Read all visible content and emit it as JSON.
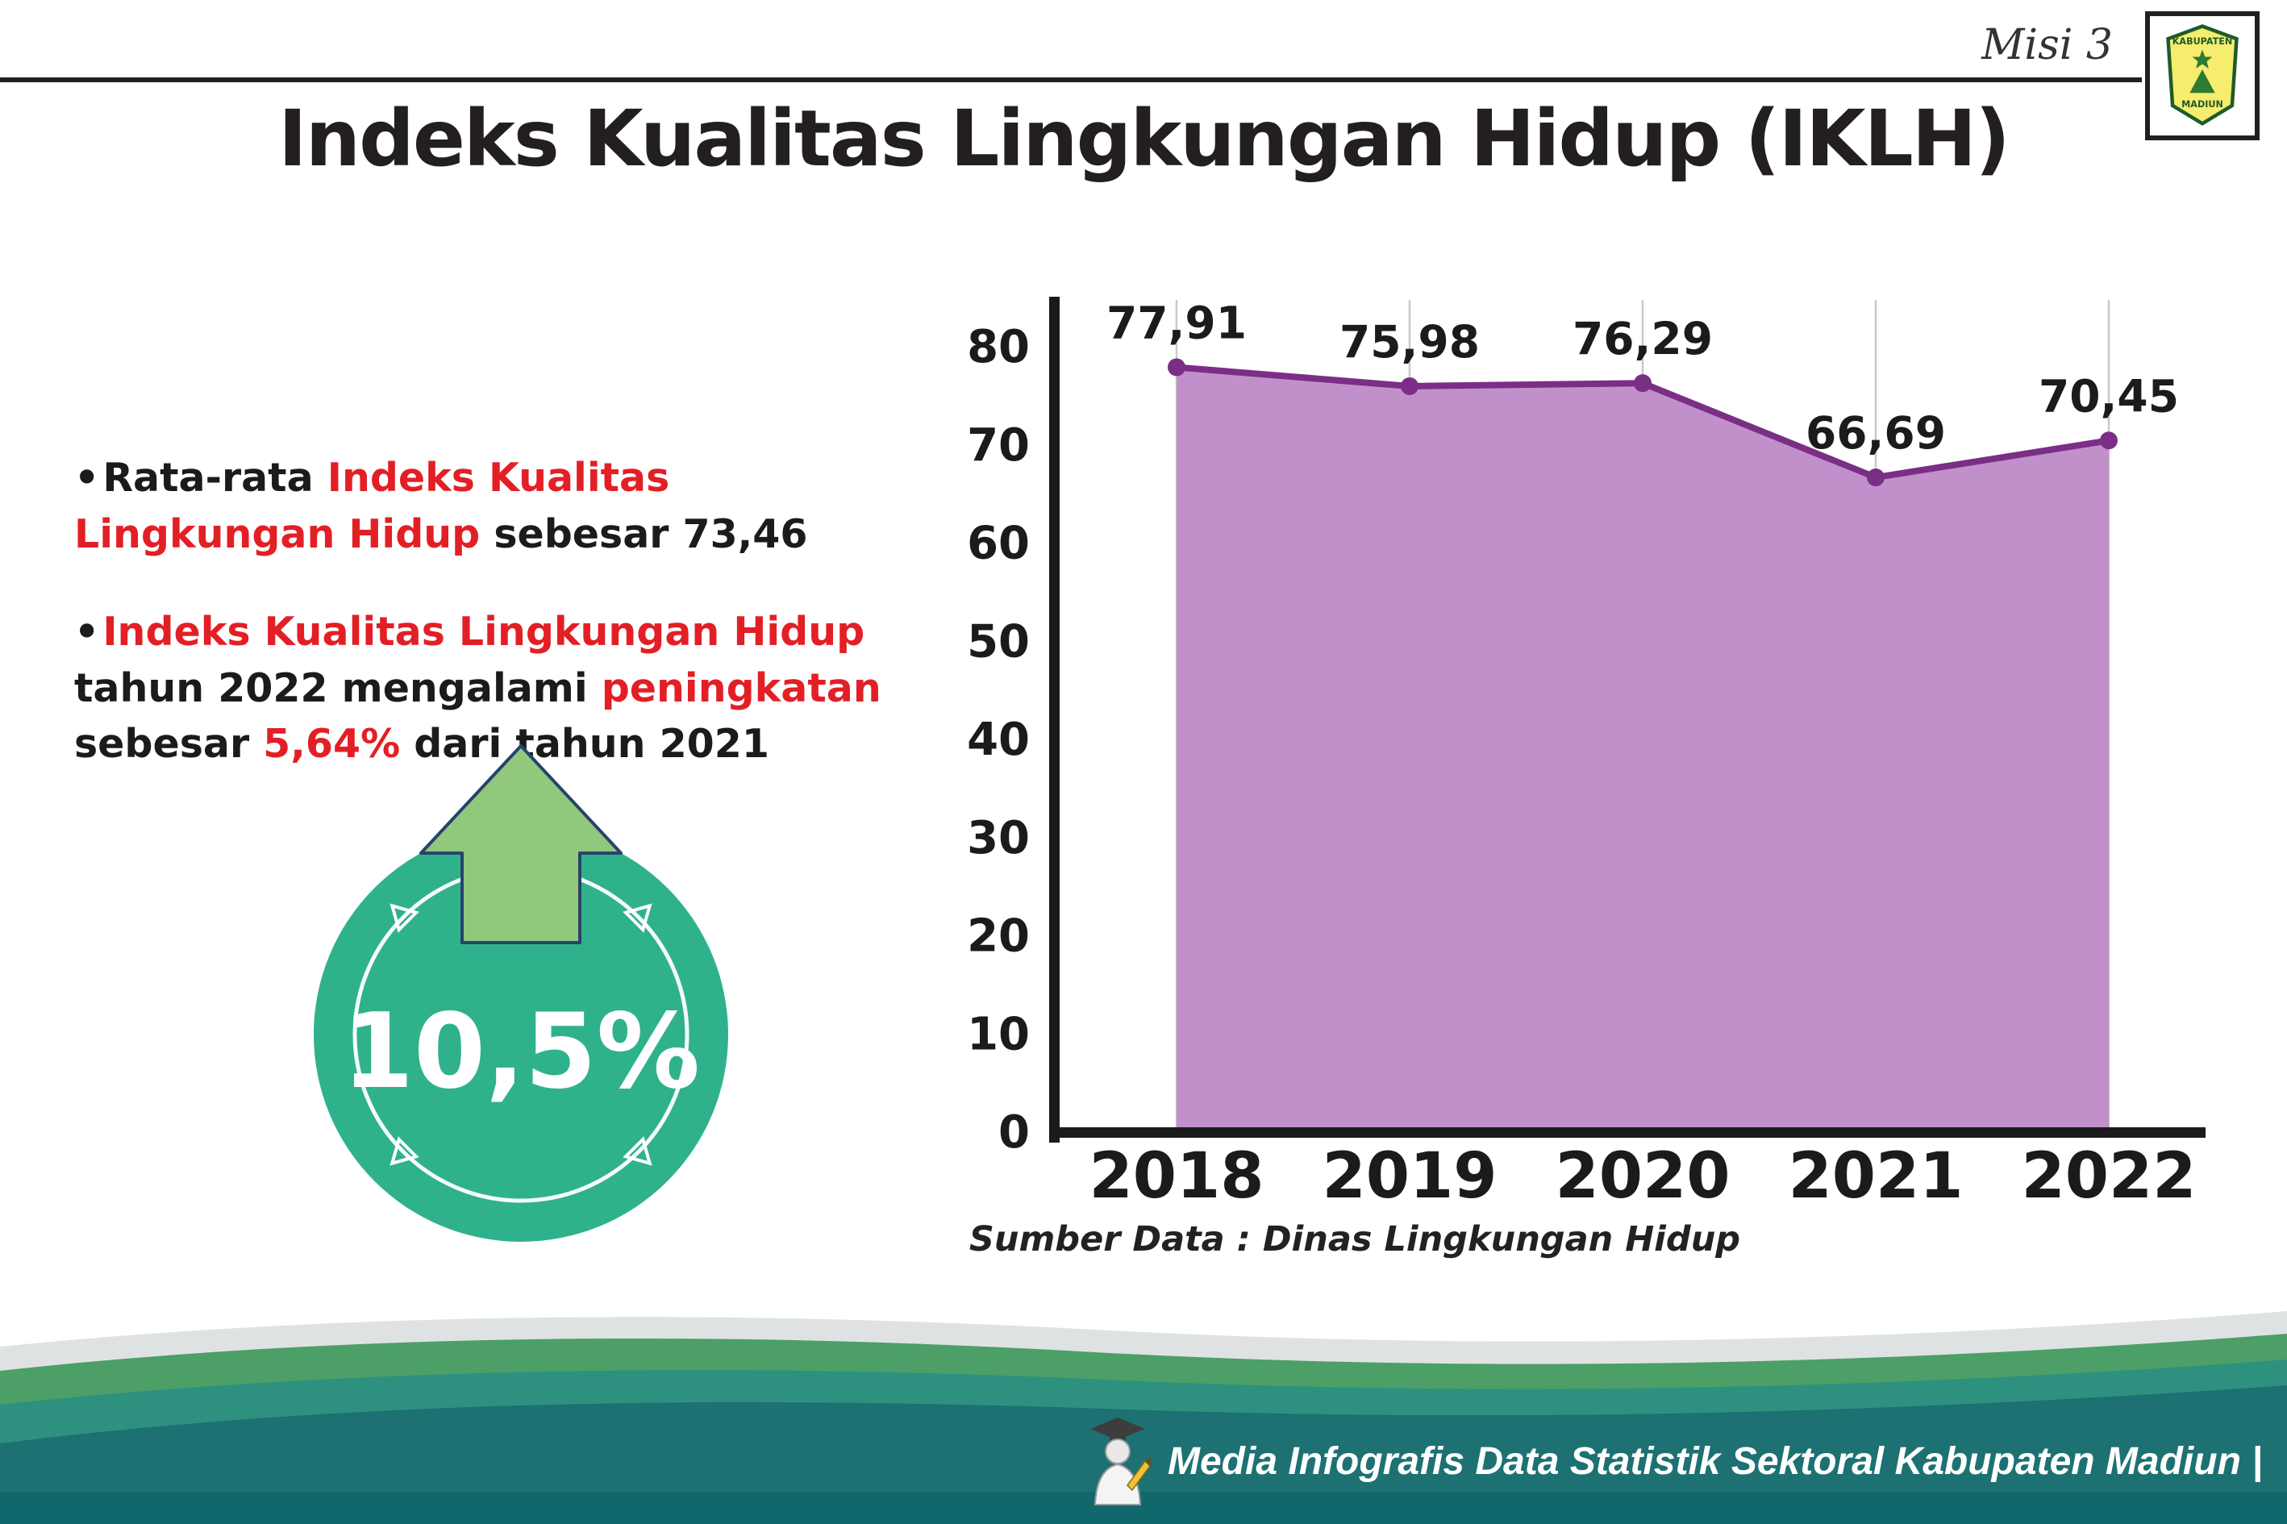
{
  "header": {
    "misi_label": "Misi 3",
    "title": "Indeks Kualitas Lingkungan Hidup (IKLH)",
    "logo_line1": "KABUPATEN",
    "logo_line2": "MADIUN"
  },
  "left_panel": {
    "bullet_char": "•",
    "bullet1": {
      "black1": "Rata-rata ",
      "red1": "Indeks Kualitas Lingkungan Hidup",
      "black2": " sebesar 73,46"
    },
    "bullet2": {
      "red1": "Indeks Kualitas Lingkungan Hidup",
      "black1": " tahun 2022 mengalami ",
      "red2": "peningkatan",
      "black2": " sebesar ",
      "red3": "5,64%",
      "black3": " dari tahun 2021"
    },
    "badge_value": "10,5%"
  },
  "chart_data": {
    "type": "area",
    "title": "Indeks Kualitas Lingkungan Hidup (IKLH)",
    "categories": [
      "2018",
      "2019",
      "2020",
      "2021",
      "2022"
    ],
    "values": [
      77.91,
      75.98,
      76.29,
      66.69,
      70.45
    ],
    "value_labels": [
      "77,91",
      "75,98",
      "76,29",
      "66,69",
      "70,45"
    ],
    "xlabel": "",
    "ylabel": "",
    "ylim": [
      0,
      80
    ],
    "ytick_step": 10,
    "grid": "vertical",
    "legend": "none",
    "source": "Sumber Data : Dinas Lingkungan Hidup",
    "fill_color": "#c190cb",
    "line_color": "#7b2e86"
  },
  "footer": {
    "credit": "Media Infografis Data Statistik Sektoral Kabupaten Madiun |"
  },
  "colors": {
    "red_text": "#e31f26",
    "badge_teal": "#2fb28c",
    "arrow_green": "#90c87c",
    "footer_gray": "#dfe2e3",
    "footer_green": "#4c9f66",
    "footer_teal_mid": "#2e9180",
    "footer_teal_dark": "#1d7173",
    "footer_bar": "#11686c"
  }
}
